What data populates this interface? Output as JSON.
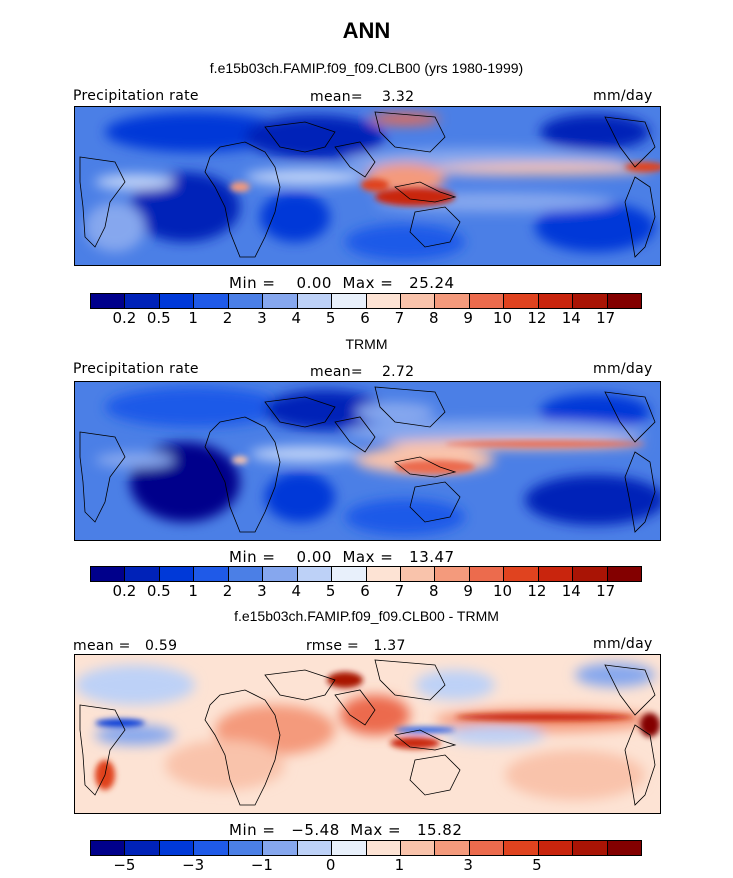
{
  "header": {
    "title": "ANN",
    "subtitle1": "f.e15b03ch.FAMIP.f09_f09.CLB00 (yrs 1980-1999)",
    "subtitle2": "TRMM",
    "subtitle3": "f.e15b03ch.FAMIP.f09_f09.CLB00 - TRMM"
  },
  "panel1": {
    "left_label": "Precipitation rate",
    "mean_label": "mean=",
    "mean_value": "3.32",
    "units": "mm/day",
    "min_label": "Min =",
    "min_value": "0.00",
    "max_label": "Max =",
    "max_value": "25.24"
  },
  "panel2": {
    "left_label": "Precipitation rate",
    "mean_label": "mean=",
    "mean_value": "2.72",
    "units": "mm/day",
    "min_label": "Min =",
    "min_value": "0.00",
    "max_label": "Max =",
    "max_value": "13.47"
  },
  "panel3": {
    "mean_label": "mean =",
    "mean_value": "0.59",
    "rmse_label": "rmse =",
    "rmse_value": "1.37",
    "units": "mm/day",
    "min_label": "Min =",
    "min_value": "−5.48",
    "max_label": "Max =",
    "max_value": "15.82"
  },
  "colorbar_precip": {
    "colors": [
      "#00008b",
      "#0022b8",
      "#0039d8",
      "#1f5ae8",
      "#4b7fe6",
      "#86a7ee",
      "#bdd1f7",
      "#e8f0fb",
      "#fde3d4",
      "#f9c3ab",
      "#f49a7c",
      "#ec6b4d",
      "#e0431f",
      "#c9250d",
      "#a91405",
      "#830000"
    ],
    "tick_labels": [
      "0.2",
      "0.5",
      "1",
      "2",
      "3",
      "4",
      "5",
      "6",
      "7",
      "8",
      "9",
      "10",
      "12",
      "14",
      "17"
    ]
  },
  "colorbar_diff": {
    "colors": [
      "#00008b",
      "#0022b8",
      "#0039d8",
      "#1f5ae8",
      "#4b7fe6",
      "#86a7ee",
      "#bdd1f7",
      "#e8f0fb",
      "#fde3d4",
      "#f9c3ab",
      "#f49a7c",
      "#ec6b4d",
      "#e0431f",
      "#c9250d",
      "#a91405",
      "#830000"
    ],
    "tick_labels": [
      "−5",
      "",
      "−3",
      "",
      "−1",
      "",
      "0",
      "",
      "1",
      "",
      "3",
      "",
      "5"
    ]
  }
}
